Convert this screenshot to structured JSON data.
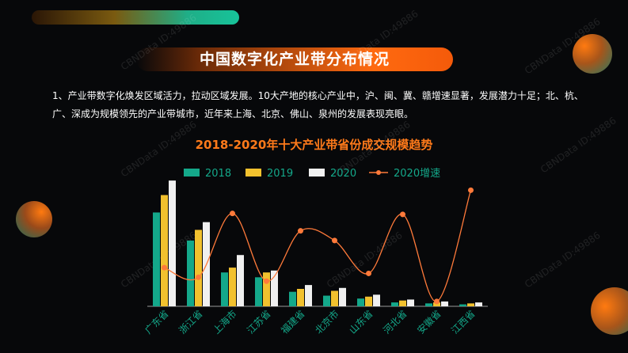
{
  "page": {
    "title": "中国数字化产业带分布情况",
    "paragraph": "1、产业带数字化焕发区域活力，拉动区域发展。10大产地的核心产业中，沪、闽、冀、赣增速显著，发展潜力十足；北、杭、广、深成为规模领先的产业带城市，近年来上海、北京、佛山、泉州的发展表现亮眼。",
    "watermark": "CBNData ID:49886"
  },
  "colors": {
    "accent": "#ff6a10",
    "s2018": "#14a88a",
    "s2019": "#f2c12e",
    "s2020": "#f0f0f0",
    "growth": "#ff7a3a"
  },
  "chart_data": {
    "type": "bar",
    "title": "2018-2020年十大产业带省份成交规模趋势",
    "categories": [
      "广东省",
      "浙江省",
      "上海市",
      "江苏省",
      "福建省",
      "北京市",
      "山东省",
      "河北省",
      "安徽省",
      "江西省"
    ],
    "series": [
      {
        "name": "2018",
        "values": [
          97,
          68,
          35,
          30,
          15,
          11,
          8,
          4,
          3,
          2
        ]
      },
      {
        "name": "2019",
        "values": [
          115,
          79,
          40,
          35,
          18,
          16,
          10,
          6,
          4,
          3
        ]
      },
      {
        "name": "2020",
        "values": [
          130,
          87,
          53,
          37,
          22,
          19,
          12,
          7,
          5,
          4
        ]
      }
    ],
    "line_series": {
      "name": "2020增速",
      "values": [
        40,
        30,
        96,
        26,
        78,
        68,
        34,
        95,
        5,
        120
      ]
    },
    "legend_position": "top",
    "grid": false,
    "ylim": [
      0,
      135
    ],
    "line_ylim": [
      0,
      135
    ]
  }
}
